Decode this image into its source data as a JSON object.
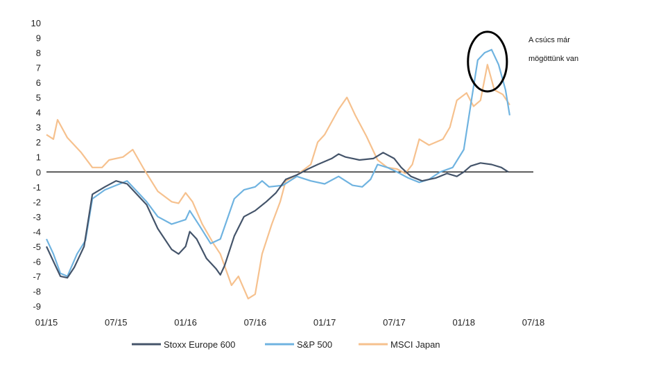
{
  "chart_data": {
    "type": "line",
    "xlabel": "",
    "ylabel": "",
    "x_ticks": [
      "01/15",
      "07/15",
      "01/16",
      "07/16",
      "01/17",
      "07/17",
      "01/18",
      "07/18"
    ],
    "xlim": [
      2015.0,
      2018.5
    ],
    "ylim": [
      -9,
      10
    ],
    "y_ticks": [
      10,
      9,
      8,
      7,
      6,
      5,
      4,
      3,
      2,
      1,
      0,
      -1,
      -2,
      -3,
      -4,
      -5,
      -6,
      -7,
      -8,
      -9
    ],
    "grid": false,
    "legend_position": "bottom",
    "series": [
      {
        "name": "Stoxx Europe 600",
        "color": "#44546a",
        "points": [
          [
            2015.0,
            -5.0
          ],
          [
            2015.05,
            -6.0
          ],
          [
            2015.1,
            -7.0
          ],
          [
            2015.15,
            -7.1
          ],
          [
            2015.2,
            -6.4
          ],
          [
            2015.27,
            -5.0
          ],
          [
            2015.33,
            -1.5
          ],
          [
            2015.42,
            -1.0
          ],
          [
            2015.5,
            -0.6
          ],
          [
            2015.58,
            -0.8
          ],
          [
            2015.65,
            -1.5
          ],
          [
            2015.72,
            -2.2
          ],
          [
            2015.8,
            -3.8
          ],
          [
            2015.9,
            -5.2
          ],
          [
            2015.95,
            -5.5
          ],
          [
            2016.0,
            -5.0
          ],
          [
            2016.03,
            -4.0
          ],
          [
            2016.08,
            -4.5
          ],
          [
            2016.15,
            -5.8
          ],
          [
            2016.22,
            -6.5
          ],
          [
            2016.25,
            -6.9
          ],
          [
            2016.28,
            -6.3
          ],
          [
            2016.35,
            -4.3
          ],
          [
            2016.42,
            -3.0
          ],
          [
            2016.5,
            -2.6
          ],
          [
            2016.58,
            -2.0
          ],
          [
            2016.65,
            -1.4
          ],
          [
            2016.72,
            -0.5
          ],
          [
            2016.8,
            -0.2
          ],
          [
            2016.88,
            0.2
          ],
          [
            2016.95,
            0.5
          ],
          [
            2017.05,
            0.9
          ],
          [
            2017.1,
            1.2
          ],
          [
            2017.15,
            1.0
          ],
          [
            2017.25,
            0.8
          ],
          [
            2017.35,
            0.9
          ],
          [
            2017.42,
            1.3
          ],
          [
            2017.5,
            0.9
          ],
          [
            2017.55,
            0.3
          ],
          [
            2017.62,
            -0.3
          ],
          [
            2017.7,
            -0.6
          ],
          [
            2017.8,
            -0.4
          ],
          [
            2017.88,
            -0.1
          ],
          [
            2017.95,
            -0.3
          ],
          [
            2018.0,
            0.0
          ],
          [
            2018.05,
            0.4
          ],
          [
            2018.12,
            0.6
          ],
          [
            2018.2,
            0.5
          ],
          [
            2018.27,
            0.3
          ],
          [
            2018.32,
            0.0
          ]
        ]
      },
      {
        "name": "S&P 500",
        "color": "#6fb3e0",
        "points": [
          [
            2015.0,
            -4.5
          ],
          [
            2015.05,
            -5.5
          ],
          [
            2015.1,
            -6.8
          ],
          [
            2015.15,
            -7.0
          ],
          [
            2015.22,
            -5.5
          ],
          [
            2015.28,
            -4.6
          ],
          [
            2015.33,
            -1.8
          ],
          [
            2015.42,
            -1.2
          ],
          [
            2015.5,
            -0.9
          ],
          [
            2015.58,
            -0.6
          ],
          [
            2015.65,
            -1.3
          ],
          [
            2015.72,
            -2.0
          ],
          [
            2015.8,
            -3.0
          ],
          [
            2015.9,
            -3.5
          ],
          [
            2016.0,
            -3.2
          ],
          [
            2016.03,
            -2.6
          ],
          [
            2016.1,
            -3.6
          ],
          [
            2016.18,
            -4.8
          ],
          [
            2016.25,
            -4.5
          ],
          [
            2016.35,
            -1.8
          ],
          [
            2016.42,
            -1.2
          ],
          [
            2016.5,
            -1.0
          ],
          [
            2016.55,
            -0.6
          ],
          [
            2016.6,
            -1.0
          ],
          [
            2016.7,
            -0.9
          ],
          [
            2016.8,
            -0.3
          ],
          [
            2016.9,
            -0.6
          ],
          [
            2017.0,
            -0.8
          ],
          [
            2017.1,
            -0.3
          ],
          [
            2017.2,
            -0.9
          ],
          [
            2017.27,
            -1.0
          ],
          [
            2017.33,
            -0.5
          ],
          [
            2017.38,
            0.5
          ],
          [
            2017.45,
            0.3
          ],
          [
            2017.52,
            0.0
          ],
          [
            2017.6,
            -0.4
          ],
          [
            2017.68,
            -0.7
          ],
          [
            2017.75,
            -0.5
          ],
          [
            2017.83,
            0.0
          ],
          [
            2017.92,
            0.3
          ],
          [
            2018.0,
            1.5
          ],
          [
            2018.05,
            4.5
          ],
          [
            2018.1,
            7.5
          ],
          [
            2018.15,
            8.0
          ],
          [
            2018.2,
            8.2
          ],
          [
            2018.25,
            7.2
          ],
          [
            2018.3,
            5.5
          ],
          [
            2018.33,
            3.8
          ]
        ]
      },
      {
        "name": "MSCI Japan",
        "color": "#f6c18e",
        "points": [
          [
            2015.0,
            2.5
          ],
          [
            2015.05,
            2.2
          ],
          [
            2015.08,
            3.5
          ],
          [
            2015.15,
            2.3
          ],
          [
            2015.25,
            1.3
          ],
          [
            2015.33,
            0.3
          ],
          [
            2015.4,
            0.3
          ],
          [
            2015.45,
            0.8
          ],
          [
            2015.55,
            1.0
          ],
          [
            2015.62,
            1.5
          ],
          [
            2015.7,
            0.2
          ],
          [
            2015.8,
            -1.3
          ],
          [
            2015.9,
            -2.0
          ],
          [
            2015.95,
            -2.1
          ],
          [
            2016.0,
            -1.4
          ],
          [
            2016.05,
            -2.0
          ],
          [
            2016.12,
            -3.5
          ],
          [
            2016.2,
            -4.8
          ],
          [
            2016.25,
            -5.5
          ],
          [
            2016.33,
            -7.6
          ],
          [
            2016.38,
            -7.0
          ],
          [
            2016.45,
            -8.5
          ],
          [
            2016.5,
            -8.2
          ],
          [
            2016.55,
            -5.5
          ],
          [
            2016.62,
            -3.5
          ],
          [
            2016.68,
            -2.0
          ],
          [
            2016.72,
            -0.6
          ],
          [
            2016.8,
            -0.2
          ],
          [
            2016.9,
            0.5
          ],
          [
            2016.95,
            2.0
          ],
          [
            2017.0,
            2.5
          ],
          [
            2017.1,
            4.2
          ],
          [
            2017.16,
            5.0
          ],
          [
            2017.22,
            3.8
          ],
          [
            2017.3,
            2.4
          ],
          [
            2017.38,
            0.8
          ],
          [
            2017.45,
            0.3
          ],
          [
            2017.52,
            0.2
          ],
          [
            2017.58,
            -0.1
          ],
          [
            2017.63,
            0.5
          ],
          [
            2017.68,
            2.2
          ],
          [
            2017.75,
            1.8
          ],
          [
            2017.85,
            2.2
          ],
          [
            2017.9,
            3.0
          ],
          [
            2017.95,
            4.8
          ],
          [
            2018.02,
            5.3
          ],
          [
            2018.07,
            4.4
          ],
          [
            2018.12,
            4.8
          ],
          [
            2018.17,
            7.2
          ],
          [
            2018.22,
            5.5
          ],
          [
            2018.28,
            5.2
          ],
          [
            2018.33,
            4.5
          ]
        ]
      }
    ],
    "annotation": {
      "lines": [
        "A csúcs már",
        "mögöttünk van"
      ],
      "circle_center": [
        2018.17,
        7.4
      ],
      "circle_radius_x": 0.14,
      "circle_radius_y": 2.0
    }
  }
}
